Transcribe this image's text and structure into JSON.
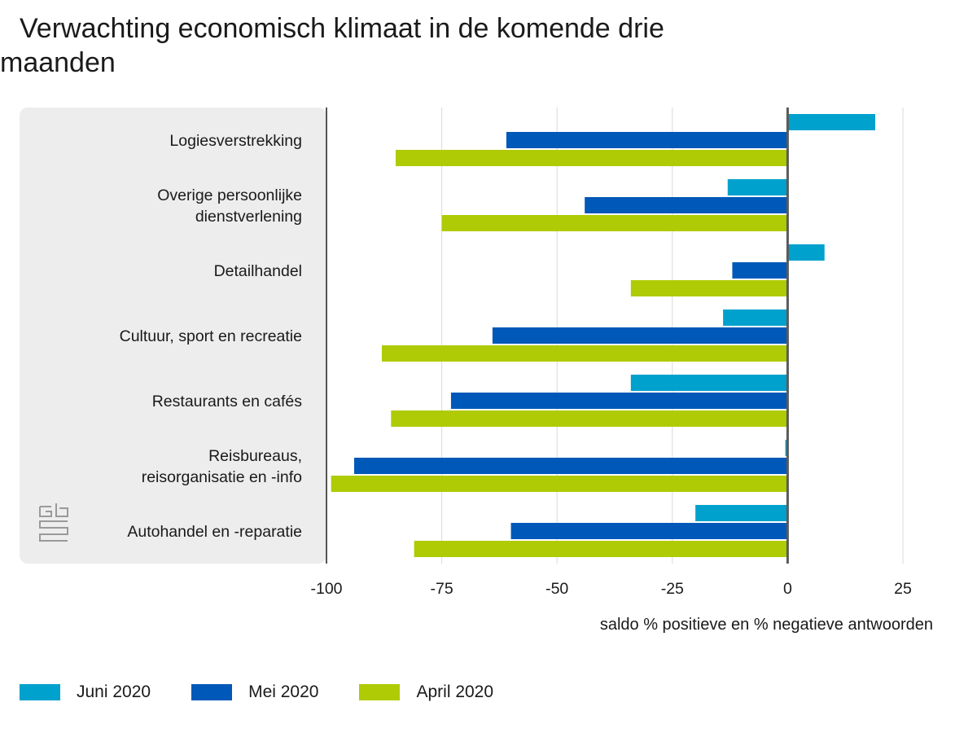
{
  "chart_data": {
    "type": "bar",
    "orientation": "horizontal",
    "title": "Verwachting economisch klimaat in de komende drie maanden",
    "xlabel": "saldo % positieve en % negatieve antwoorden",
    "ylabel": "",
    "xlim": [
      -100,
      25
    ],
    "xticks": [
      -100,
      -75,
      -50,
      -25,
      0,
      25
    ],
    "grid": true,
    "legend_position": "bottom-left",
    "categories": [
      [
        "Logiesverstrekking"
      ],
      [
        "Overige persoonlijke",
        "dienstverlening"
      ],
      [
        "Detailhandel"
      ],
      [
        "Cultuur, sport en recreatie"
      ],
      [
        "Restaurants en cafés"
      ],
      [
        "Reisbureaus,",
        "reisorganisatie en -info"
      ],
      [
        "Autohandel en -reparatie"
      ]
    ],
    "series": [
      {
        "name": "Juni 2020",
        "color": "#00a1cd",
        "values": [
          19,
          -13,
          8,
          -14,
          -34,
          -0.5,
          -20
        ]
      },
      {
        "name": "Mei 2020",
        "color": "#0058b8",
        "values": [
          -61,
          -44,
          -12,
          -64,
          -73,
          -94,
          -60
        ]
      },
      {
        "name": "April 2020",
        "color": "#afcb05",
        "values": [
          -85,
          -75,
          -34,
          -88,
          -86,
          -99,
          -81
        ]
      }
    ]
  }
}
